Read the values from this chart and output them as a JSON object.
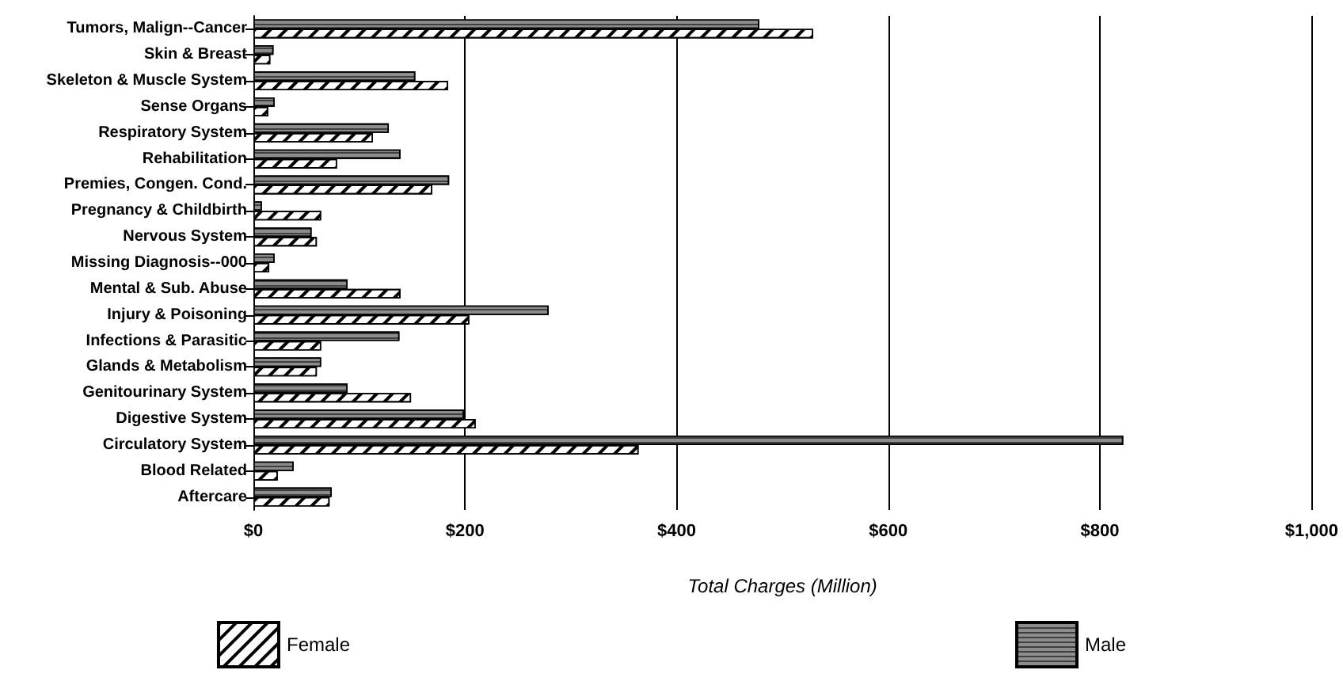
{
  "chart_data": {
    "type": "bar",
    "orientation": "horizontal",
    "xlabel": "Total Charges (Million)",
    "categories": [
      "Tumors, Malign--Cancer",
      "Skin & Breast",
      "Skeleton & Muscle System",
      "Sense Organs",
      "Respiratory System",
      "Rehabilitation",
      "Premies, Congen. Cond.",
      "Pregnancy & Childbirth",
      "Nervous System",
      "Missing Diagnosis--000",
      "Mental & Sub. Abuse",
      "Injury & Poisoning",
      "Infections & Parasitic",
      "Glands & Metabolism",
      "Genitourinary System",
      "Digestive System",
      "Circulatory System",
      "Blood Related",
      "Aftercare"
    ],
    "series": [
      {
        "name": "Male",
        "color": "#8c8c8c",
        "values": [
          478,
          19,
          153,
          20,
          128,
          139,
          185,
          8,
          55,
          20,
          89,
          279,
          138,
          64,
          89,
          199,
          822,
          38,
          74
        ]
      },
      {
        "name": "Female",
        "color": "#ffffff",
        "values": [
          529,
          16,
          184,
          14,
          113,
          79,
          169,
          64,
          60,
          15,
          139,
          204,
          64,
          60,
          149,
          210,
          364,
          23,
          72
        ]
      }
    ],
    "xlim": [
      0,
      1000
    ],
    "xticks": [
      {
        "value": 0,
        "label": "$0"
      },
      {
        "value": 200,
        "label": "$200"
      },
      {
        "value": 400,
        "label": "$400"
      },
      {
        "value": 600,
        "label": "$600"
      },
      {
        "value": 800,
        "label": "$800"
      },
      {
        "value": 1000,
        "label": "$1,000"
      }
    ],
    "grid": "x",
    "legend": "bottom"
  }
}
